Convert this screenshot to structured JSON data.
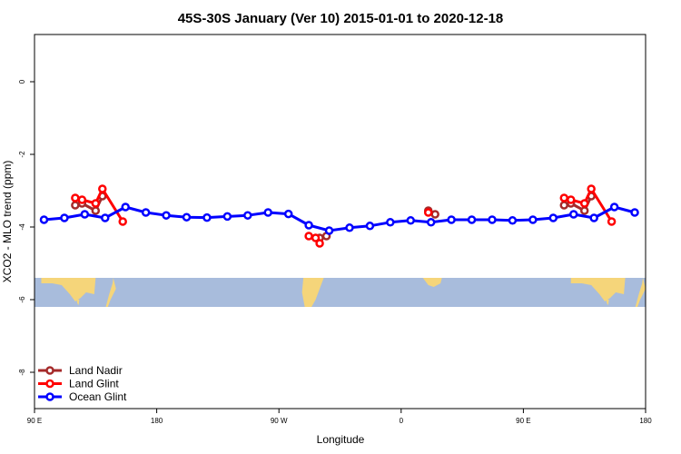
{
  "chart_data": {
    "type": "line",
    "title": "45S-30S January (Ver 10)   2015-01-01 to 2020-12-18",
    "xlabel": "Longitude",
    "ylabel": "XCO2 - MLO trend (ppm)",
    "xlim": [
      90,
      540
    ],
    "ylim": [
      -9,
      1.3
    ],
    "x_ticks": [
      {
        "value": 90,
        "label": "90 E"
      },
      {
        "value": 180,
        "label": "180"
      },
      {
        "value": 270,
        "label": "90 W"
      },
      {
        "value": 360,
        "label": "0"
      },
      {
        "value": 450,
        "label": "90 E"
      },
      {
        "value": 540,
        "label": "180"
      }
    ],
    "y_ticks": [
      {
        "value": 0,
        "label": "0"
      },
      {
        "value": -2,
        "label": "-2"
      },
      {
        "value": -4,
        "label": "-4"
      },
      {
        "value": -6,
        "label": "-6"
      },
      {
        "value": -8,
        "label": "-8"
      }
    ],
    "legend_position": "bottom-left",
    "map_strip": {
      "y_top": -5.4,
      "y_bottom": -6.2,
      "ocean_color": "#a8bcdc",
      "land_color": "#f5d57a"
    },
    "series": [
      {
        "name": "Land Nadir",
        "color": "#a52a2a",
        "segments": [
          [
            [
              120,
              -3.4
            ],
            [
              125,
              -3.35
            ],
            [
              135,
              -3.55
            ],
            [
              140,
              -3.15
            ]
          ],
          [
            [
              300,
              -4.3
            ],
            [
              305,
              -4.25
            ]
          ],
          [
            [
              380,
              -3.55
            ],
            [
              385,
              -3.65
            ]
          ],
          [
            [
              480,
              -3.4
            ],
            [
              485,
              -3.35
            ],
            [
              495,
              -3.55
            ],
            [
              500,
              -3.15
            ]
          ]
        ]
      },
      {
        "name": "Land Glint",
        "color": "#ff0000",
        "segments": [
          [
            [
              120,
              -3.2
            ],
            [
              125,
              -3.25
            ],
            [
              135,
              -3.35
            ],
            [
              140,
              -2.95
            ],
            [
              155,
              -3.85
            ]
          ],
          [
            [
              292,
              -4.25
            ],
            [
              297,
              -4.3
            ],
            [
              300,
              -4.45
            ]
          ],
          [
            [
              380,
              -3.6
            ]
          ],
          [
            [
              480,
              -3.2
            ],
            [
              485,
              -3.25
            ],
            [
              495,
              -3.35
            ],
            [
              500,
              -2.95
            ],
            [
              515,
              -3.85
            ]
          ]
        ]
      },
      {
        "name": "Ocean Glint",
        "color": "#0000ff",
        "segments": [
          [
            [
              97,
              -3.8
            ],
            [
              112,
              -3.75
            ],
            [
              127,
              -3.65
            ],
            [
              142,
              -3.75
            ],
            [
              157,
              -3.45
            ],
            [
              172,
              -3.6
            ],
            [
              187,
              -3.68
            ],
            [
              202,
              -3.73
            ],
            [
              217,
              -3.74
            ],
            [
              232,
              -3.71
            ],
            [
              247,
              -3.68
            ],
            [
              262,
              -3.6
            ],
            [
              277,
              -3.64
            ],
            [
              292,
              -3.95
            ],
            [
              307,
              -4.1
            ],
            [
              322,
              -4.02
            ],
            [
              337,
              -3.97
            ],
            [
              352,
              -3.87
            ],
            [
              367,
              -3.82
            ],
            [
              382,
              -3.87
            ],
            [
              397,
              -3.8
            ],
            [
              412,
              -3.8
            ],
            [
              427,
              -3.8
            ],
            [
              442,
              -3.82
            ],
            [
              457,
              -3.8
            ],
            [
              472,
              -3.75
            ],
            [
              487,
              -3.65
            ],
            [
              502,
              -3.75
            ],
            [
              517,
              -3.45
            ],
            [
              532,
              -3.6
            ]
          ]
        ]
      }
    ]
  }
}
